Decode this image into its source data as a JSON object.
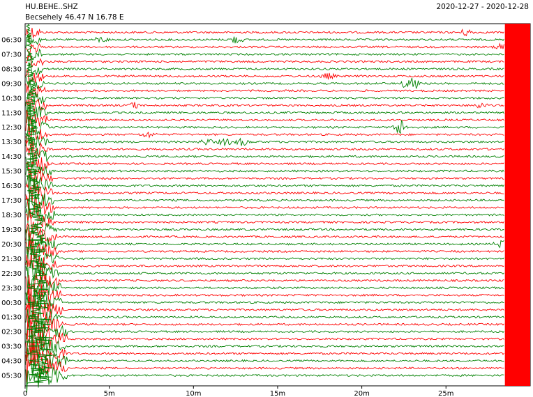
{
  "header": {
    "station_code": "HU.BEHE..SHZ",
    "station_info": "Becsehely  46.47 N 16.78 E",
    "date_range": "2020-12-27 - 2020-12-28"
  },
  "colors": {
    "red": "#ff0000",
    "green": "#008000"
  },
  "chart_data": {
    "type": "line",
    "title": "",
    "xlabel": "",
    "ylabel": "",
    "x_unit": "minutes",
    "xlim": [
      0,
      30
    ],
    "x_ticks": [
      0,
      5,
      10,
      15,
      20,
      25
    ],
    "x_tick_labels": [
      "0",
      "5m",
      "10m",
      "15m",
      "20m",
      "25m"
    ],
    "y_tick_labels": [
      "06:30",
      "07:30",
      "08:30",
      "09:30",
      "10:30",
      "11:30",
      "12:30",
      "13:30",
      "14:30",
      "15:30",
      "16:30",
      "17:30",
      "18:30",
      "19:30",
      "20:30",
      "21:30",
      "22:30",
      "23:30",
      "00:30",
      "01:30",
      "02:30",
      "03:30",
      "04:30",
      "05:30"
    ],
    "trace_count": 48,
    "first_trace_color": "red",
    "trace_color_sequence": [
      "red",
      "green"
    ],
    "trace_end_minute": 28.5,
    "events": [
      {
        "trace": 1,
        "x": 4.5,
        "amp": 4
      },
      {
        "trace": 1,
        "x": 12.5,
        "amp": 5
      },
      {
        "trace": 0,
        "x": 26.2,
        "amp": 5
      },
      {
        "trace": 2,
        "x": 28.3,
        "amp": 4
      },
      {
        "trace": 6,
        "x": 18.0,
        "amp": 4
      },
      {
        "trace": 7,
        "x": 22.9,
        "amp": 14
      },
      {
        "trace": 10,
        "x": 6.5,
        "amp": 4
      },
      {
        "trace": 10,
        "x": 27.0,
        "amp": 4
      },
      {
        "trace": 13,
        "x": 22.3,
        "amp": 12
      },
      {
        "trace": 14,
        "x": 7.3,
        "amp": 4
      },
      {
        "trace": 15,
        "x": 10.8,
        "amp": 4
      },
      {
        "trace": 15,
        "x": 11.9,
        "amp": 5
      },
      {
        "trace": 15,
        "x": 12.9,
        "amp": 5
      },
      {
        "trace": 29,
        "x": 28.3,
        "amp": 6
      }
    ]
  }
}
